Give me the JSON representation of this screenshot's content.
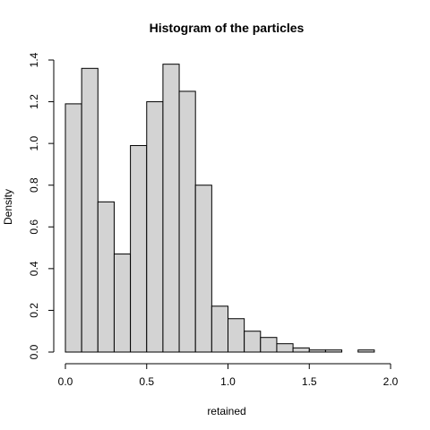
{
  "chart_data": {
    "type": "bar",
    "subtype": "histogram",
    "title": "Histogram of the particles",
    "xlabel": "retained",
    "ylabel": "Density",
    "bin_width": 0.1,
    "bins": [
      {
        "x0": 0.0,
        "x1": 0.1,
        "density": 1.19
      },
      {
        "x0": 0.1,
        "x1": 0.2,
        "density": 1.36
      },
      {
        "x0": 0.2,
        "x1": 0.3,
        "density": 0.72
      },
      {
        "x0": 0.3,
        "x1": 0.4,
        "density": 0.47
      },
      {
        "x0": 0.4,
        "x1": 0.5,
        "density": 0.99
      },
      {
        "x0": 0.5,
        "x1": 0.6,
        "density": 1.2
      },
      {
        "x0": 0.6,
        "x1": 0.7,
        "density": 1.38
      },
      {
        "x0": 0.7,
        "x1": 0.8,
        "density": 1.25
      },
      {
        "x0": 0.8,
        "x1": 0.9,
        "density": 0.8
      },
      {
        "x0": 0.9,
        "x1": 1.0,
        "density": 0.22
      },
      {
        "x0": 1.0,
        "x1": 1.1,
        "density": 0.16
      },
      {
        "x0": 1.1,
        "x1": 1.2,
        "density": 0.1
      },
      {
        "x0": 1.2,
        "x1": 1.3,
        "density": 0.07
      },
      {
        "x0": 1.3,
        "x1": 1.4,
        "density": 0.04
      },
      {
        "x0": 1.4,
        "x1": 1.5,
        "density": 0.02
      },
      {
        "x0": 1.5,
        "x1": 1.6,
        "density": 0.01
      },
      {
        "x0": 1.6,
        "x1": 1.7,
        "density": 0.01
      },
      {
        "x0": 1.7,
        "x1": 1.8,
        "density": 0.0
      },
      {
        "x0": 1.8,
        "x1": 1.9,
        "density": 0.01
      }
    ],
    "xlim": [
      0.0,
      2.0
    ],
    "ylim": [
      0.0,
      1.4
    ],
    "x_ticks": [
      "0.0",
      "0.5",
      "1.0",
      "1.5",
      "2.0"
    ],
    "x_tick_values": [
      0.0,
      0.5,
      1.0,
      1.5,
      2.0
    ],
    "y_ticks": [
      "0.0",
      "0.2",
      "0.4",
      "0.6",
      "0.8",
      "1.0",
      "1.2",
      "1.4"
    ],
    "y_tick_values": [
      0.0,
      0.2,
      0.4,
      0.6,
      0.8,
      1.0,
      1.2,
      1.4
    ],
    "bar_color": "#d3d3d3",
    "grid": false
  }
}
